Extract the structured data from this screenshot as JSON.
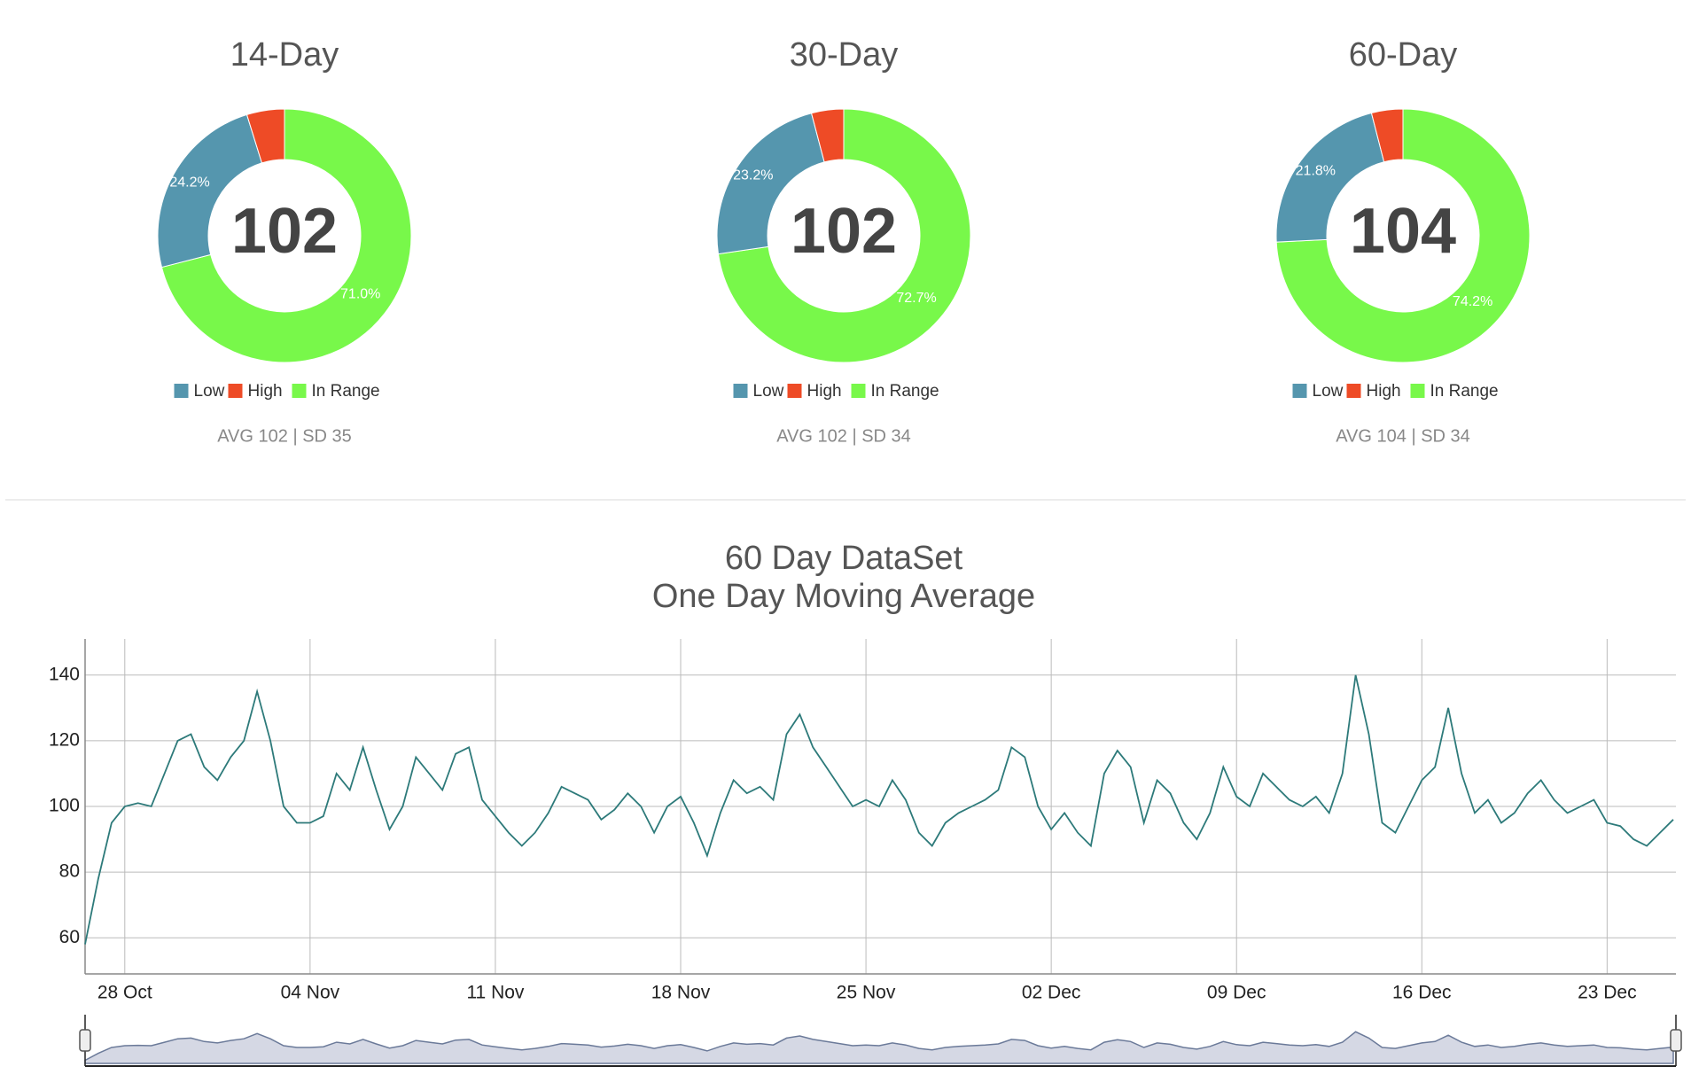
{
  "chart_data": [
    {
      "type": "pie",
      "title": "14-Day",
      "categories": [
        "Low",
        "High",
        "In Range"
      ],
      "values": [
        24.2,
        4.8,
        71.0
      ],
      "value_labels": [
        "24.2%",
        null,
        "71.0%"
      ],
      "colors": [
        "#5596ae",
        "#ee4b26",
        "#78f84a"
      ],
      "center_value": 102,
      "note": "AVG 102 | SD 35"
    },
    {
      "type": "pie",
      "title": "30-Day",
      "categories": [
        "Low",
        "High",
        "In Range"
      ],
      "values": [
        23.2,
        4.1,
        72.7
      ],
      "value_labels": [
        "23.2%",
        null,
        "72.7%"
      ],
      "colors": [
        "#5596ae",
        "#ee4b26",
        "#78f84a"
      ],
      "center_value": 102,
      "note": "AVG 102 | SD 34"
    },
    {
      "type": "pie",
      "title": "60-Day",
      "categories": [
        "Low",
        "High",
        "In Range"
      ],
      "values": [
        21.8,
        4.0,
        74.2
      ],
      "value_labels": [
        "21.8%",
        null,
        "74.2%"
      ],
      "colors": [
        "#5596ae",
        "#ee4b26",
        "#78f84a"
      ],
      "center_value": 104,
      "note": "AVG 104 | SD 34"
    },
    {
      "type": "line",
      "title": "60 Day DataSet",
      "subtitle": "One Day Moving Average",
      "color": "#2d7a7a",
      "grid": true,
      "navigator": true,
      "x": [
        -1.5,
        -1,
        -0.5,
        0,
        0.5,
        1,
        1.5,
        2,
        2.5,
        3,
        3.5,
        4,
        4.5,
        5,
        5.5,
        6,
        6.5,
        7,
        7.5,
        8,
        8.5,
        9,
        9.5,
        10,
        10.5,
        11,
        11.5,
        12,
        12.5,
        13,
        13.5,
        14,
        14.5,
        15,
        15.5,
        16,
        16.5,
        17,
        17.5,
        18,
        18.5,
        19,
        19.5,
        20,
        20.5,
        21,
        21.5,
        22,
        22.5,
        23,
        23.5,
        24,
        24.5,
        25,
        25.5,
        26,
        26.5,
        27,
        27.5,
        28,
        28.5,
        29,
        29.5,
        30,
        30.5,
        31,
        31.5,
        32,
        32.5,
        33,
        33.5,
        34,
        34.5,
        35,
        35.5,
        36,
        36.5,
        37,
        37.5,
        38,
        38.5,
        39,
        39.5,
        40,
        40.5,
        41,
        41.5,
        42,
        42.5,
        43,
        43.5,
        44,
        44.5,
        45,
        45.5,
        46,
        46.5,
        47,
        47.5,
        48,
        48.5,
        49,
        49.5,
        50,
        50.5,
        51,
        51.5,
        52,
        52.5,
        53,
        53.5,
        54,
        54.5,
        55,
        55.5,
        56,
        56.5,
        57,
        57.5,
        58,
        58.5
      ],
      "values": [
        58,
        78,
        95,
        100,
        101,
        100,
        110,
        120,
        122,
        112,
        108,
        115,
        120,
        135,
        120,
        100,
        95,
        95,
        97,
        110,
        105,
        118,
        105,
        93,
        100,
        115,
        110,
        105,
        116,
        118,
        102,
        97,
        92,
        88,
        92,
        98,
        106,
        104,
        102,
        96,
        99,
        104,
        100,
        92,
        100,
        103,
        95,
        85,
        98,
        108,
        104,
        106,
        102,
        122,
        128,
        118,
        112,
        106,
        100,
        102,
        100,
        108,
        102,
        92,
        88,
        95,
        98,
        100,
        102,
        105,
        118,
        115,
        100,
        93,
        98,
        92,
        88,
        110,
        117,
        112,
        95,
        108,
        104,
        95,
        90,
        98,
        112,
        103,
        100,
        110,
        106,
        102,
        100,
        103,
        98,
        110,
        140,
        122,
        95,
        92,
        100,
        108,
        112,
        130,
        110,
        98,
        102,
        95,
        98,
        104,
        108,
        102,
        98,
        100,
        102,
        95,
        94,
        90,
        88,
        92,
        96
      ],
      "xlim": [
        -1.5,
        58.6
      ],
      "ylim": [
        49,
        151
      ],
      "yticks": [
        60,
        80,
        100,
        120,
        140
      ],
      "xticks": [
        {
          "value": 0,
          "label": "28 Oct"
        },
        {
          "value": 7,
          "label": "04 Nov"
        },
        {
          "value": 14,
          "label": "11 Nov"
        },
        {
          "value": 21,
          "label": "18 Nov"
        },
        {
          "value": 28,
          "label": "25 Nov"
        },
        {
          "value": 35,
          "label": "02 Dec"
        },
        {
          "value": 42,
          "label": "09 Dec"
        },
        {
          "value": 49,
          "label": "16 Dec"
        },
        {
          "value": 56,
          "label": "23 Dec"
        }
      ]
    }
  ]
}
